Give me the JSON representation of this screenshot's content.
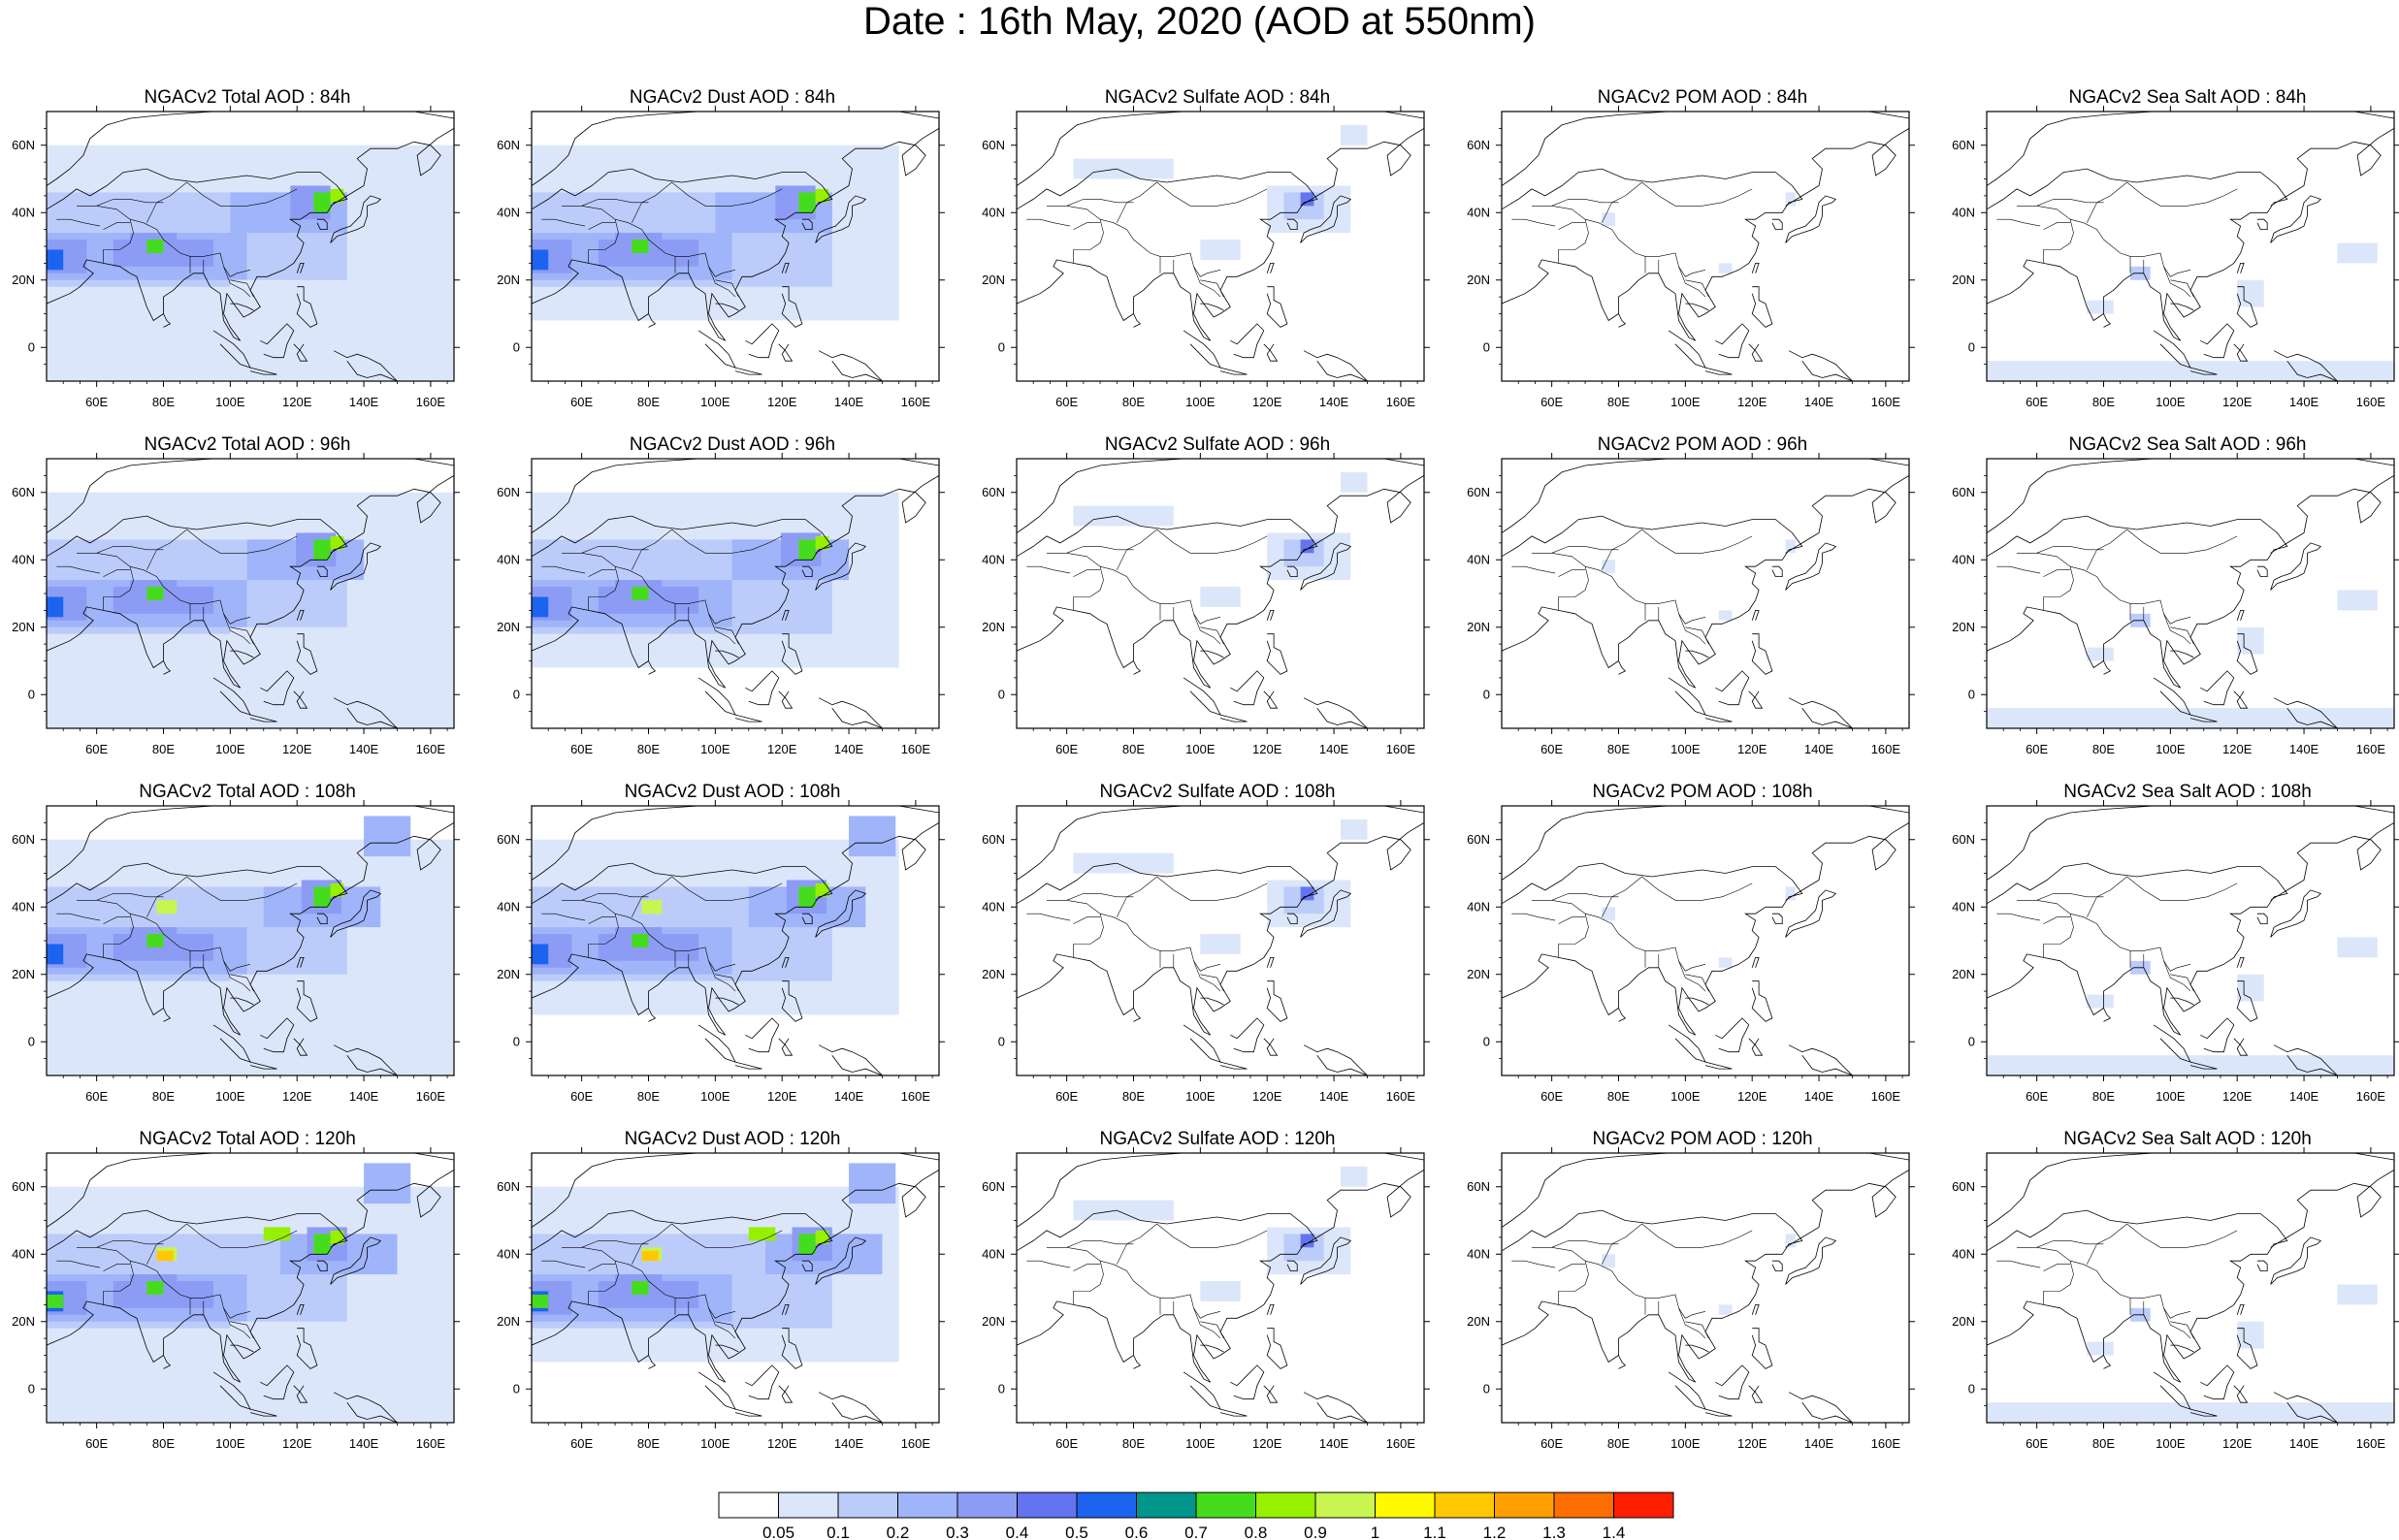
{
  "title": "Date : 16th May, 2020 (AOD at 550nm)",
  "panels": [
    {
      "title": "NGACv2 Total AOD : 84h",
      "species": "total",
      "hour": 84
    },
    {
      "title": "NGACv2 Dust AOD : 84h",
      "species": "dust",
      "hour": 84
    },
    {
      "title": "NGACv2 Sulfate AOD : 84h",
      "species": "sulfate",
      "hour": 84
    },
    {
      "title": "NGACv2 POM AOD : 84h",
      "species": "pom",
      "hour": 84
    },
    {
      "title": "NGACv2 Sea Salt AOD : 84h",
      "species": "seasalt",
      "hour": 84
    },
    {
      "title": "NGACv2 Total AOD : 96h",
      "species": "total",
      "hour": 96
    },
    {
      "title": "NGACv2 Dust AOD : 96h",
      "species": "dust",
      "hour": 96
    },
    {
      "title": "NGACv2 Sulfate AOD : 96h",
      "species": "sulfate",
      "hour": 96
    },
    {
      "title": "NGACv2 POM AOD : 96h",
      "species": "pom",
      "hour": 96
    },
    {
      "title": "NGACv2 Sea Salt AOD : 96h",
      "species": "seasalt",
      "hour": 96
    },
    {
      "title": "NGACv2 Total AOD : 108h",
      "species": "total",
      "hour": 108
    },
    {
      "title": "NGACv2 Dust AOD : 108h",
      "species": "dust",
      "hour": 108
    },
    {
      "title": "NGACv2 Sulfate AOD : 108h",
      "species": "sulfate",
      "hour": 108
    },
    {
      "title": "NGACv2 POM AOD : 108h",
      "species": "pom",
      "hour": 108
    },
    {
      "title": "NGACv2 Sea Salt AOD : 108h",
      "species": "seasalt",
      "hour": 108
    },
    {
      "title": "NGACv2 Total AOD : 120h",
      "species": "total",
      "hour": 120
    },
    {
      "title": "NGACv2 Dust AOD : 120h",
      "species": "dust",
      "hour": 120
    },
    {
      "title": "NGACv2 Sulfate AOD : 120h",
      "species": "sulfate",
      "hour": 120
    },
    {
      "title": "NGACv2 POM AOD : 120h",
      "species": "pom",
      "hour": 120
    },
    {
      "title": "NGACv2 Sea Salt  AOD : 120h",
      "species": "seasalt",
      "hour": 120
    }
  ],
  "map": {
    "lon_range": [
      45,
      167
    ],
    "lat_range": [
      -10,
      70
    ],
    "lon_ticks": [
      "60E",
      "80E",
      "100E",
      "120E",
      "140E",
      "160E"
    ],
    "lon_tick_values": [
      60,
      80,
      100,
      120,
      140,
      160
    ],
    "lat_ticks": [
      "60N",
      "40N",
      "20N",
      "0"
    ],
    "lat_tick_values": [
      60,
      40,
      20,
      0
    ]
  },
  "colorbar": {
    "levels": [
      "0.05",
      "0.1",
      "0.2",
      "0.3",
      "0.4",
      "0.5",
      "0.6",
      "0.7",
      "0.8",
      "0.9",
      "1",
      "1.1",
      "1.2",
      "1.3",
      "1.4"
    ],
    "colors": [
      "#ffffff",
      "#dce6fa",
      "#bcccfa",
      "#a0b4fa",
      "#8c9cf5",
      "#6474f0",
      "#1c64f0",
      "#00968c",
      "#46dc1e",
      "#96f000",
      "#c8f550",
      "#fffa00",
      "#ffc800",
      "#ffa000",
      "#ff6e00",
      "#ff1e00"
    ]
  }
}
